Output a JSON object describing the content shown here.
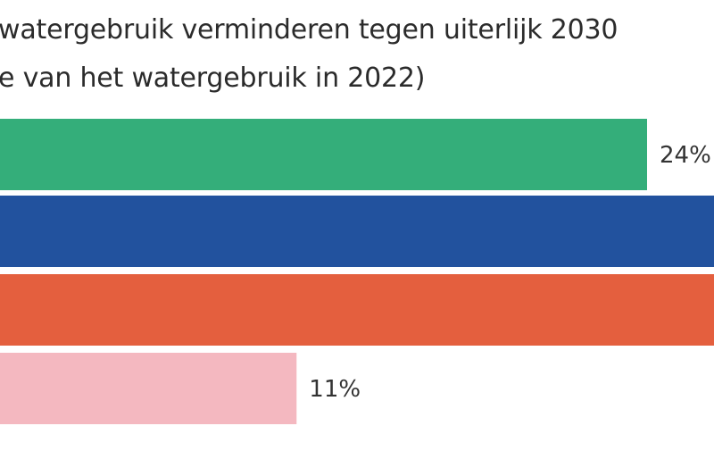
{
  "chart_data": {
    "type": "bar",
    "orientation": "horizontal",
    "title_lines": [
      "watergebruik verminderen tegen uiterlijk 2030",
      "e van het watergebruik in 2022)"
    ],
    "values": [
      24,
      null,
      null,
      11
    ],
    "value_labels": [
      "24%",
      "",
      "",
      "11%"
    ],
    "colors": [
      "#34ae7a",
      "#22529e",
      "#e45f3e",
      "#f4b8c0"
    ],
    "grid": false,
    "legend": "none"
  }
}
